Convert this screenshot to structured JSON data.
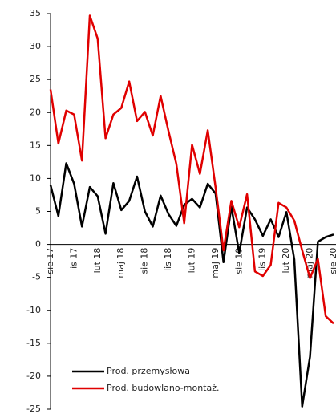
{
  "chart_data": {
    "type": "line",
    "categories": [
      "sie 17",
      null,
      null,
      "lis 17",
      null,
      null,
      "lut 18",
      null,
      null,
      "maj 18",
      null,
      null,
      "sie 18",
      null,
      null,
      "lis 18",
      null,
      null,
      "lut 19",
      null,
      null,
      "maj 19",
      null,
      null,
      "sie 19",
      null,
      null,
      "lis 19",
      null,
      null,
      "lut 20",
      null,
      null,
      "maj 20",
      null,
      null,
      "sie 20"
    ],
    "series": [
      {
        "name": "Prod. przemysłowa",
        "color": "#000000",
        "values": [
          9,
          4.3,
          12.3,
          9.2,
          2.7,
          8.7,
          7.3,
          1.6,
          9.3,
          5.2,
          6.6,
          10.3,
          5,
          2.7,
          7.4,
          4.6,
          2.8,
          6,
          6.9,
          5.6,
          9.2,
          7.7,
          -2.7,
          5.7,
          -1.3,
          5.6,
          3.8,
          1.3,
          3.8,
          1.1,
          4.9,
          -2.3,
          -24.6,
          -17,
          0.4,
          1.1,
          1.5
        ]
      },
      {
        "name": "Prod. budowlano-montaż.",
        "color": "#e00000",
        "values": [
          23.5,
          15.3,
          20.3,
          19.7,
          12.7,
          34.7,
          31.2,
          16.1,
          19.7,
          20.7,
          24.7,
          18.7,
          20.1,
          16.5,
          22.5,
          17.2,
          12.2,
          3.2,
          15.1,
          10.7,
          17.3,
          8.6,
          -0.9,
          6.6,
          2.6,
          7.6,
          -4.1,
          -4.8,
          -3.1,
          6.3,
          5.6,
          3.6,
          -0.9,
          -5.1,
          -2.2,
          -10.9,
          -12
        ]
      }
    ],
    "ylim": [
      -25,
      35
    ],
    "yticks": [
      -25,
      -20,
      -15,
      -10,
      -5,
      0,
      5,
      10,
      15,
      20,
      25,
      30,
      35
    ],
    "grid": false,
    "legend": "lower left"
  }
}
